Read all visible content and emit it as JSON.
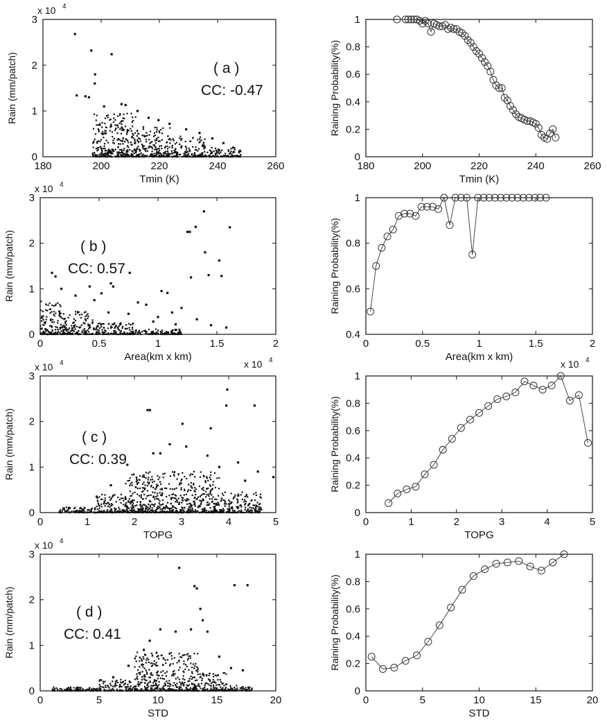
{
  "chart_data": [
    {
      "type": "scatter",
      "xlabel": "Tmin (K)",
      "ylabel": "Rain (mm/patch)",
      "xlim": [
        180,
        260
      ],
      "ylim": [
        0,
        3
      ],
      "xticks": [
        "180",
        "200",
        "220",
        "240",
        "260"
      ],
      "yticks": [
        "0",
        "1",
        "2",
        "3"
      ],
      "y_multiplier": {
        "base": "x 10",
        "exp": "4"
      },
      "annotation": [
        "( a )",
        "CC: -0.47"
      ],
      "points": [
        [
          191,
          2.68
        ],
        [
          196.6,
          2.32
        ],
        [
          203.6,
          2.24
        ],
        [
          197.9,
          1.8
        ],
        [
          197.8,
          1.6
        ],
        [
          191.6,
          1.34
        ],
        [
          194.6,
          1.32
        ],
        [
          195.8,
          1.3
        ],
        [
          207,
          1.15
        ],
        [
          208.4,
          1.13
        ],
        [
          201,
          1.1
        ],
        [
          212.5,
          1.0
        ],
        [
          216.3,
          0.85
        ],
        [
          219.7,
          0.8
        ],
        [
          223.5,
          0.72
        ],
        [
          229.2,
          0.6
        ],
        [
          233.8,
          0.52
        ],
        [
          238.2,
          0.4
        ],
        [
          242,
          0.3
        ],
        [
          245.3,
          0.2
        ],
        [
          247.5,
          0.12
        ]
      ],
      "scatter_regions": [
        {
          "x_range": [
            197,
            212
          ],
          "y_max": 0.95
        },
        {
          "x_range": [
            212,
            224
          ],
          "y_max": 0.7
        },
        {
          "x_range": [
            224,
            236
          ],
          "y_max": 0.45
        },
        {
          "x_range": [
            236,
            248
          ],
          "y_max": 0.2
        }
      ]
    },
    {
      "type": "line",
      "xlabel": "Tmin (K)",
      "ylabel": "Raining Probability(%)",
      "xlim": [
        180,
        260
      ],
      "ylim": [
        0,
        1
      ],
      "xticks": [
        "180",
        "200",
        "220",
        "240",
        "260"
      ],
      "yticks": [
        "0",
        "0.2",
        "0.4",
        "0.6",
        "0.8",
        "1"
      ],
      "x": [
        191,
        194,
        195,
        196,
        197,
        198,
        199,
        200,
        201,
        202,
        203,
        204,
        205,
        206,
        207,
        208,
        209,
        210,
        211,
        212,
        213,
        214,
        215,
        216,
        217,
        218,
        219,
        220,
        221,
        222,
        223,
        224,
        225,
        226,
        227,
        228,
        229,
        230,
        231,
        232,
        233,
        234,
        235,
        236,
        237,
        238,
        239,
        240,
        241,
        242,
        243,
        244,
        245,
        246,
        247
      ],
      "y": [
        1.0,
        1.0,
        1.0,
        1.0,
        1.0,
        1.0,
        0.99,
        0.97,
        0.99,
        0.97,
        0.91,
        0.97,
        0.96,
        0.95,
        0.95,
        0.96,
        0.93,
        0.94,
        0.93,
        0.93,
        0.91,
        0.9,
        0.88,
        0.85,
        0.83,
        0.8,
        0.77,
        0.75,
        0.72,
        0.69,
        0.66,
        0.62,
        0.56,
        0.52,
        0.5,
        0.5,
        0.43,
        0.41,
        0.37,
        0.34,
        0.31,
        0.29,
        0.28,
        0.27,
        0.26,
        0.26,
        0.25,
        0.24,
        0.21,
        0.16,
        0.14,
        0.13,
        0.17,
        0.2,
        0.14
      ]
    },
    {
      "type": "scatter",
      "xlabel": "Area(km x km)",
      "ylabel": "Rain (mm/patch)",
      "xlim": [
        0,
        2
      ],
      "ylim": [
        0,
        3
      ],
      "xticks": [
        "0",
        "0.5",
        "1",
        "1.5",
        "2"
      ],
      "yticks": [
        "0",
        "1",
        "2",
        "3"
      ],
      "y_multiplier": {
        "base": "x 10",
        "exp": "4"
      },
      "annotation": [
        "( b )",
        "CC: 0.57"
      ],
      "points": [
        [
          1.39,
          2.7
        ],
        [
          1.32,
          2.36
        ],
        [
          1.61,
          2.35
        ],
        [
          1.25,
          2.25
        ],
        [
          1.27,
          2.25
        ],
        [
          1.4,
          1.8
        ],
        [
          1.52,
          1.62
        ],
        [
          1.43,
          1.3
        ],
        [
          1.54,
          1.28
        ],
        [
          0.76,
          1.35
        ],
        [
          1.28,
          1.25
        ],
        [
          0.1,
          1.35
        ],
        [
          0.13,
          1.27
        ],
        [
          0.6,
          1.12
        ],
        [
          0.62,
          1.05
        ],
        [
          0.42,
          1.05
        ],
        [
          0.18,
          1.0
        ],
        [
          1.03,
          0.95
        ],
        [
          1.08,
          0.91
        ],
        [
          0.52,
          0.9
        ],
        [
          0.46,
          0.75
        ],
        [
          0.83,
          0.7
        ],
        [
          0.9,
          0.65
        ],
        [
          1.2,
          0.58
        ],
        [
          1.12,
          0.48
        ],
        [
          0.75,
          0.45
        ],
        [
          1.0,
          0.38
        ],
        [
          1.33,
          0.33
        ],
        [
          1.15,
          0.22
        ],
        [
          1.45,
          0.2
        ],
        [
          1.58,
          0.15
        ],
        [
          0.96,
          0.28
        ],
        [
          0.68,
          0.22
        ],
        [
          0.58,
          0.48
        ],
        [
          0.3,
          0.85
        ]
      ],
      "scatter_regions": [
        {
          "x_range": [
            0,
            0.18
          ],
          "y_max": 0.75
        },
        {
          "x_range": [
            0.18,
            0.45
          ],
          "y_max": 0.5
        },
        {
          "x_range": [
            0.45,
            0.8
          ],
          "y_max": 0.25
        },
        {
          "x_range": [
            0.8,
            1.2
          ],
          "y_max": 0.12
        }
      ]
    },
    {
      "type": "line",
      "xlabel": "Area(km x km)",
      "ylabel": "Raining Probability(%)",
      "xlim": [
        0,
        2
      ],
      "ylim": [
        0.4,
        1
      ],
      "xticks": [
        "0",
        "0.5",
        "1",
        "1.5",
        "2"
      ],
      "yticks": [
        "0.4",
        "0.6",
        "0.8",
        "1"
      ],
      "x": [
        0.04,
        0.09,
        0.14,
        0.19,
        0.24,
        0.29,
        0.34,
        0.39,
        0.44,
        0.49,
        0.54,
        0.59,
        0.64,
        0.69,
        0.74,
        0.79,
        0.84,
        0.89,
        0.94,
        0.99,
        1.04,
        1.09,
        1.14,
        1.19,
        1.24,
        1.29,
        1.34,
        1.39,
        1.44,
        1.49,
        1.54,
        1.59
      ],
      "y": [
        0.5,
        0.7,
        0.78,
        0.83,
        0.86,
        0.92,
        0.93,
        0.93,
        0.92,
        0.96,
        0.96,
        0.96,
        0.95,
        1.0,
        0.88,
        1.0,
        1.0,
        1.0,
        0.75,
        1.0,
        1.0,
        1.0,
        1.0,
        1.0,
        1.0,
        1.0,
        1.0,
        1.0,
        1.0,
        1.0,
        1.0,
        1.0
      ]
    },
    {
      "type": "scatter",
      "xlabel": "TOPG",
      "ylabel": "Rain (mm/patch)",
      "xlim": [
        0,
        5
      ],
      "ylim": [
        0,
        3
      ],
      "xticks": [
        "0",
        "1",
        "2",
        "3",
        "4",
        "5"
      ],
      "yticks": [
        "0",
        "1",
        "2",
        "3"
      ],
      "x_multiplier": {
        "base": "x 10",
        "exp": "4"
      },
      "y_multiplier": {
        "base": "x 10",
        "exp": "4"
      },
      "annotation": [
        "( c )",
        "CC: 0.39"
      ],
      "points": [
        [
          3.97,
          2.7
        ],
        [
          4.55,
          2.35
        ],
        [
          3.95,
          2.35
        ],
        [
          2.28,
          2.25
        ],
        [
          2.33,
          2.25
        ],
        [
          3.02,
          1.95
        ],
        [
          3.62,
          1.85
        ],
        [
          2.75,
          1.5
        ],
        [
          3.1,
          1.45
        ],
        [
          2.4,
          1.3
        ],
        [
          3.55,
          1.25
        ],
        [
          4.2,
          1.1
        ],
        [
          4.62,
          0.9
        ],
        [
          4.95,
          0.78
        ],
        [
          1.85,
          1.05
        ],
        [
          2.55,
          1.3
        ],
        [
          3.8,
          1.0
        ],
        [
          4.35,
          0.7
        ],
        [
          1.5,
          0.6
        ],
        [
          1.2,
          0.35
        ]
      ],
      "scatter_regions": [
        {
          "x_range": [
            0.4,
            1.2
          ],
          "y_max": 0.12
        },
        {
          "x_range": [
            1.2,
            1.8
          ],
          "y_max": 0.4
        },
        {
          "x_range": [
            1.8,
            3.8
          ],
          "y_max": 0.9
        },
        {
          "x_range": [
            3.8,
            4.7
          ],
          "y_max": 0.45
        }
      ]
    },
    {
      "type": "line",
      "xlabel": "TOPG",
      "ylabel": "Raining Probability(%)",
      "xlim": [
        0,
        5
      ],
      "ylim": [
        0,
        1
      ],
      "xticks": [
        "0",
        "1",
        "2",
        "3",
        "4",
        "5"
      ],
      "yticks": [
        "0",
        "0.2",
        "0.4",
        "0.6",
        "0.8",
        "1"
      ],
      "x_multiplier": {
        "base": "x 10",
        "exp": "4"
      },
      "x": [
        0.5,
        0.7,
        0.9,
        1.1,
        1.3,
        1.5,
        1.7,
        1.9,
        2.1,
        2.3,
        2.5,
        2.7,
        2.9,
        3.1,
        3.3,
        3.5,
        3.7,
        3.9,
        4.1,
        4.3,
        4.5,
        4.7,
        4.9
      ],
      "y": [
        0.07,
        0.14,
        0.17,
        0.19,
        0.28,
        0.35,
        0.46,
        0.54,
        0.62,
        0.68,
        0.73,
        0.78,
        0.83,
        0.85,
        0.88,
        0.96,
        0.93,
        0.9,
        0.93,
        1.0,
        0.82,
        0.86,
        0.51
      ]
    },
    {
      "type": "scatter",
      "xlabel": "STD",
      "ylabel": "Rain (mm/patch)",
      "xlim": [
        0,
        20
      ],
      "ylim": [
        0,
        3
      ],
      "xticks": [
        "0",
        "5",
        "10",
        "15",
        "20"
      ],
      "yticks": [
        "0",
        "1",
        "2",
        "3"
      ],
      "y_multiplier": {
        "base": "x 10",
        "exp": "4"
      },
      "annotation": [
        "( d )",
        "CC: 0.41"
      ],
      "points": [
        [
          11.8,
          2.7
        ],
        [
          13.1,
          2.3
        ],
        [
          13.3,
          2.25
        ],
        [
          16.5,
          2.32
        ],
        [
          17.6,
          2.32
        ],
        [
          13.6,
          1.8
        ],
        [
          13.8,
          1.55
        ],
        [
          12.8,
          1.35
        ],
        [
          14.2,
          1.3
        ],
        [
          10.2,
          1.35
        ],
        [
          11.5,
          1.3
        ],
        [
          9.3,
          1.1
        ],
        [
          8.8,
          0.9
        ],
        [
          15.2,
          0.75
        ],
        [
          16.2,
          0.5
        ],
        [
          17.2,
          0.45
        ],
        [
          7.5,
          0.55
        ],
        [
          6.2,
          0.3
        ]
      ],
      "scatter_regions": [
        {
          "x_range": [
            1,
            5
          ],
          "y_max": 0.08
        },
        {
          "x_range": [
            5,
            8
          ],
          "y_max": 0.25
        },
        {
          "x_range": [
            8,
            13.5
          ],
          "y_max": 0.85
        },
        {
          "x_range": [
            13.5,
            16
          ],
          "y_max": 0.4
        },
        {
          "x_range": [
            16,
            18
          ],
          "y_max": 0.12
        }
      ]
    },
    {
      "type": "line",
      "xlabel": "STD",
      "ylabel": "Raining Probability(%)",
      "xlim": [
        0,
        20
      ],
      "ylim": [
        0,
        1
      ],
      "xticks": [
        "0",
        "5",
        "10",
        "15",
        "20"
      ],
      "yticks": [
        "0",
        "0.2",
        "0.4",
        "0.6",
        "0.8",
        "1"
      ],
      "x": [
        0.5,
        1.5,
        2.5,
        3.5,
        4.5,
        5.5,
        6.5,
        7.5,
        8.5,
        9.5,
        10.5,
        11.5,
        12.5,
        13.5,
        14.5,
        15.5,
        16.5,
        17.5
      ],
      "y": [
        0.25,
        0.16,
        0.17,
        0.22,
        0.26,
        0.36,
        0.48,
        0.61,
        0.74,
        0.84,
        0.89,
        0.93,
        0.94,
        0.95,
        0.91,
        0.88,
        0.94,
        1.0
      ]
    }
  ]
}
